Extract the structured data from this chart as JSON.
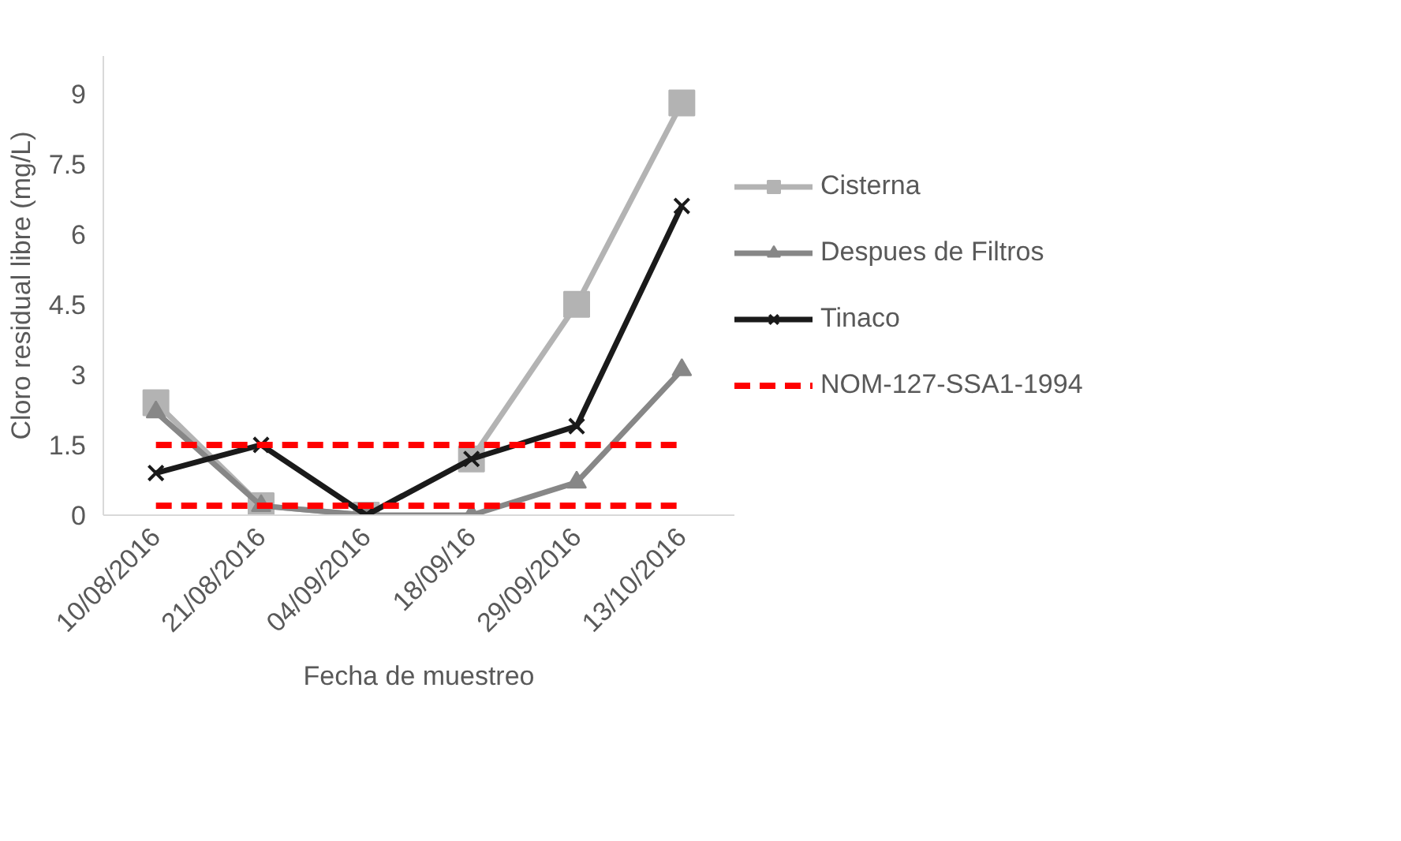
{
  "chart_data": {
    "type": "line",
    "xlabel": "Fecha de muestreo",
    "ylabel": "Cloro residual libre (mg/L)",
    "categories": [
      "10/08/2016",
      "21/08/2016",
      "04/09/2016",
      "18/09/16",
      "29/09/2016",
      "13/10/2016"
    ],
    "ylim": [
      0,
      9.8
    ],
    "yticks": [
      0,
      1.5,
      3,
      4.5,
      6,
      7.5,
      9
    ],
    "grid": false,
    "legend": "right",
    "series": [
      {
        "name": "Cisterna",
        "color": "#b3b3b3",
        "marker": "square",
        "values": [
          2.4,
          0.2,
          0,
          1.2,
          4.5,
          8.8
        ]
      },
      {
        "name": "Despues de Filtros",
        "color": "#878787",
        "marker": "triangle",
        "values": [
          2.2,
          0.2,
          0,
          0,
          0.7,
          3.1
        ]
      },
      {
        "name": "Tinaco",
        "color": "#1a1a1a",
        "marker": "cross",
        "values": [
          0.9,
          1.5,
          0,
          1.2,
          1.9,
          6.6
        ]
      },
      {
        "name": "NOM-127-SSA1-1994",
        "color": "#ff0000",
        "marker": "none",
        "line_style": "dashed",
        "values": [
          1.5,
          1.5,
          1.5,
          1.5,
          1.5,
          1.5
        ]
      },
      {
        "color": "#ff0000",
        "marker": "none",
        "line_style": "dashed",
        "values": [
          0.2,
          0.2,
          0.2,
          0.2,
          0.2,
          0.2
        ]
      }
    ]
  }
}
